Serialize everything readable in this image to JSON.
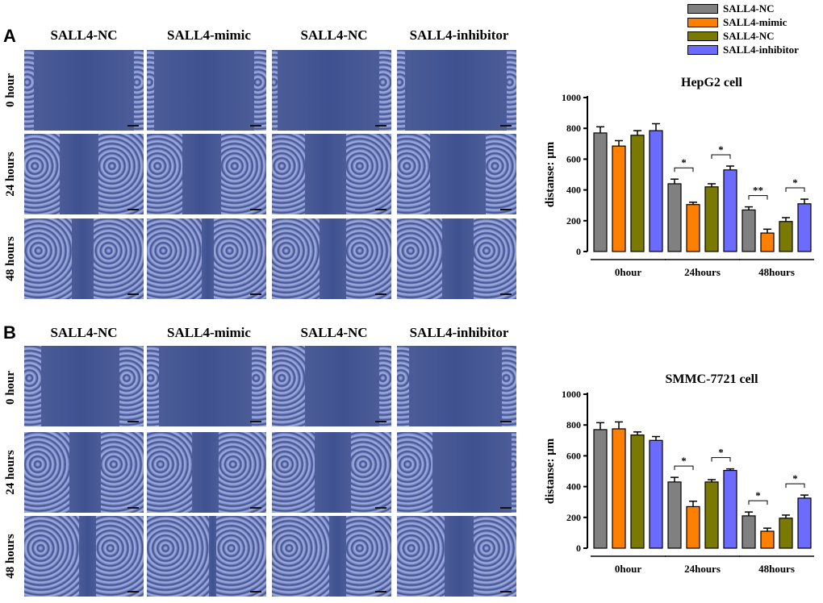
{
  "panels": [
    {
      "letter": "A",
      "columns": [
        "SALL4-NC",
        "SALL4-mimic",
        "SALL4-NC",
        "SALL4-inhibitor"
      ],
      "rows": [
        "0 hour",
        "24 hours",
        "48 hours"
      ]
    },
    {
      "letter": "B",
      "columns": [
        "SALL4-NC",
        "SALL4-mimic",
        "SALL4-NC",
        "SALL4-inhibitor"
      ],
      "rows": [
        "0 hour",
        "24 hours",
        "48 hours"
      ]
    }
  ],
  "legend": [
    {
      "label": "SALL4-NC",
      "color": "#808080"
    },
    {
      "label": "SALL4-mimic",
      "color": "#ff7f00"
    },
    {
      "label": "SALL4-NC",
      "color": "#7a7a00"
    },
    {
      "label": "SALL4-inhibitor",
      "color": "#6b6bff"
    }
  ],
  "chart_data": [
    {
      "type": "bar",
      "title": "HepG2 cell",
      "ylabel": "distanse: μm",
      "xlabel": "",
      "ylim": [
        0,
        1000
      ],
      "yticks": [
        0,
        200,
        400,
        600,
        800,
        1000
      ],
      "categories": [
        "0hour",
        "24hours",
        "48hours"
      ],
      "series": [
        {
          "name": "SALL4-NC",
          "color": "#808080",
          "values": [
            770,
            440,
            270
          ],
          "errors": [
            40,
            30,
            20
          ]
        },
        {
          "name": "SALL4-mimic",
          "color": "#ff7f00",
          "values": [
            685,
            305,
            120
          ],
          "errors": [
            35,
            15,
            25
          ]
        },
        {
          "name": "SALL4-NC",
          "color": "#7a7a00",
          "values": [
            755,
            420,
            195
          ],
          "errors": [
            30,
            20,
            25
          ]
        },
        {
          "name": "SALL4-inhibitor",
          "color": "#6b6bff",
          "values": [
            785,
            530,
            310
          ],
          "errors": [
            45,
            25,
            30
          ]
        }
      ],
      "significance": [
        {
          "group": 1,
          "from": 0,
          "to": 1,
          "label": "*"
        },
        {
          "group": 1,
          "from": 2,
          "to": 3,
          "label": "*"
        },
        {
          "group": 2,
          "from": 0,
          "to": 1,
          "label": "**"
        },
        {
          "group": 2,
          "from": 2,
          "to": 3,
          "label": "*"
        }
      ]
    },
    {
      "type": "bar",
      "title": "SMMC-7721 cell",
      "ylabel": "distanse: μm",
      "xlabel": "",
      "ylim": [
        0,
        1000
      ],
      "yticks": [
        0,
        200,
        400,
        600,
        800,
        1000
      ],
      "categories": [
        "0hour",
        "24hours",
        "48hours"
      ],
      "series": [
        {
          "name": "SALL4-NC",
          "color": "#808080",
          "values": [
            770,
            430,
            210
          ],
          "errors": [
            45,
            30,
            25
          ]
        },
        {
          "name": "SALL4-mimic",
          "color": "#ff7f00",
          "values": [
            775,
            270,
            110
          ],
          "errors": [
            45,
            35,
            20
          ]
        },
        {
          "name": "SALL4-NC",
          "color": "#7a7a00",
          "values": [
            735,
            430,
            195
          ],
          "errors": [
            20,
            15,
            20
          ]
        },
        {
          "name": "SALL4-inhibitor",
          "color": "#6b6bff",
          "values": [
            700,
            505,
            325
          ],
          "errors": [
            25,
            10,
            20
          ]
        }
      ],
      "significance": [
        {
          "group": 1,
          "from": 0,
          "to": 1,
          "label": "*"
        },
        {
          "group": 1,
          "from": 2,
          "to": 3,
          "label": "*"
        },
        {
          "group": 2,
          "from": 0,
          "to": 1,
          "label": "*"
        },
        {
          "group": 2,
          "from": 2,
          "to": 3,
          "label": "*"
        }
      ]
    }
  ]
}
